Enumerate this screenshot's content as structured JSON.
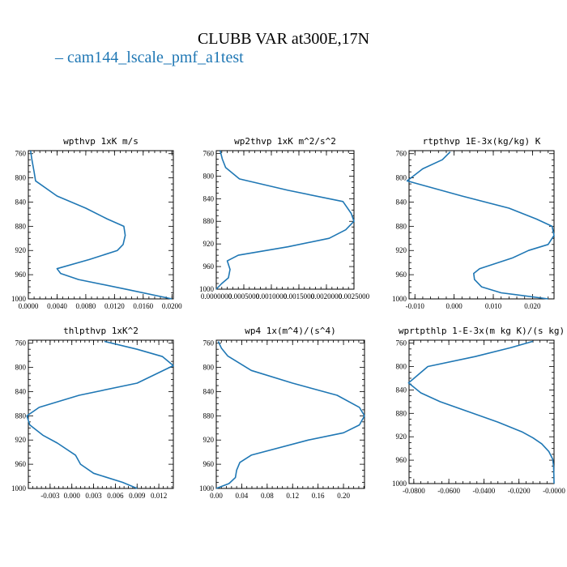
{
  "title": "CLUBB VAR at300E,17N",
  "legend": {
    "label": "cam144_lscale_pmf_a1test",
    "color": "#1f77b4"
  },
  "chart_data": [
    {
      "type": "line",
      "title": "wpthvp  1xK m/s",
      "xlim": [
        0,
        0.0202
      ],
      "ylim": [
        1000,
        755
      ],
      "y_inverted": true,
      "xticks": [
        0,
        0.004,
        0.008,
        0.012,
        0.016,
        0.02
      ],
      "xtick_labels": [
        "0.0000",
        "0.0040",
        "0.0080",
        "0.0120",
        "0.0160",
        "0.0200"
      ],
      "yticks": [
        760,
        800,
        840,
        880,
        920,
        960,
        1000
      ],
      "series": [
        {
          "x": [
            0.0003,
            0.0005,
            0.0008,
            0.001,
            0.004,
            0.008,
            0.011,
            0.0133,
            0.0135,
            0.0132,
            0.0124,
            0.0085,
            0.004,
            0.0045,
            0.007,
            0.014,
            0.02
          ],
          "y": [
            755,
            770,
            790,
            805,
            830,
            850,
            868,
            880,
            895,
            910,
            920,
            935,
            950,
            958,
            968,
            985,
            1000
          ]
        }
      ]
    },
    {
      "type": "line",
      "title": "wp2thvp  1xK m^2/s^2",
      "xlim": [
        0,
        0.0025
      ],
      "ylim": [
        1000,
        755
      ],
      "y_inverted": true,
      "xticks": [
        0,
        0.0005,
        0.001,
        0.0015,
        0.002,
        0.0025
      ],
      "xtick_labels": [
        "0.0000000",
        "0.0005000",
        "0.0010000",
        "0.0015000",
        "0.0020000",
        "0.0025000"
      ],
      "yticks": [
        760,
        800,
        840,
        880,
        920,
        960,
        1000
      ],
      "series": [
        {
          "x": [
            7e-05,
            0.00011,
            0.00017,
            0.00042,
            0.0013,
            0.0023,
            0.00245,
            0.0025,
            0.00235,
            0.00205,
            0.0013,
            0.0004,
            0.0002,
            0.00025,
            0.00022,
            0.0001,
            0.0
          ],
          "y": [
            755,
            770,
            785,
            805,
            825,
            845,
            866,
            880,
            895,
            910,
            925,
            940,
            950,
            965,
            980,
            990,
            1000
          ]
        }
      ]
    },
    {
      "type": "line",
      "title": "rtpthvp  1E-3x(kg/kg) K",
      "xlim": [
        -0.0115,
        0.0255
      ],
      "ylim": [
        1000,
        755
      ],
      "y_inverted": true,
      "xticks": [
        -0.01,
        0.0,
        0.01,
        0.02
      ],
      "xtick_labels": [
        "-0.010",
        "0.000",
        "0.010",
        "0.020"
      ],
      "yticks": [
        760,
        800,
        840,
        880,
        920,
        960,
        1000
      ],
      "series": [
        {
          "x": [
            -0.001,
            -0.003,
            -0.008,
            -0.012,
            0.002,
            0.014,
            0.021,
            0.025,
            0.0255,
            0.024,
            0.019,
            0.015,
            0.0065,
            0.005,
            0.0052,
            0.007,
            0.012,
            0.024
          ],
          "y": [
            757,
            770,
            785,
            805,
            830,
            850,
            868,
            880,
            895,
            910,
            920,
            932,
            950,
            958,
            968,
            980,
            990,
            1000
          ]
        }
      ]
    },
    {
      "type": "line",
      "title": "thlpthvp  1xK^2",
      "xlim": [
        -0.006,
        0.014
      ],
      "ylim": [
        1000,
        755
      ],
      "y_inverted": true,
      "xticks": [
        -0.003,
        0.0,
        0.003,
        0.006,
        0.009,
        0.012
      ],
      "xtick_labels": [
        "-0.003",
        "0.000",
        "0.003",
        "0.006",
        "0.009",
        "0.012"
      ],
      "yticks": [
        760,
        800,
        840,
        880,
        920,
        960,
        1000
      ],
      "series": [
        {
          "x": [
            0.0045,
            0.009,
            0.0125,
            0.014,
            0.009,
            0.001,
            -0.0045,
            -0.0062,
            -0.0058,
            -0.004,
            -0.002,
            0.0005,
            0.0012,
            0.003,
            0.007,
            0.009
          ],
          "y": [
            757,
            770,
            782,
            797,
            826,
            846,
            866,
            880,
            895,
            912,
            925,
            945,
            960,
            975,
            990,
            1000
          ]
        }
      ]
    },
    {
      "type": "line",
      "title": "wp4  1x(m^4)/(s^4)",
      "xlim": [
        0,
        0.233
      ],
      "ylim": [
        1000,
        755
      ],
      "y_inverted": true,
      "xticks": [
        0,
        0.04,
        0.08,
        0.12,
        0.16,
        0.2
      ],
      "xtick_labels": [
        "0.00",
        "0.04",
        "0.08",
        "0.12",
        "0.16",
        "0.20"
      ],
      "yticks": [
        760,
        800,
        840,
        880,
        920,
        960,
        1000
      ],
      "series": [
        {
          "x": [
            0.003,
            0.008,
            0.018,
            0.055,
            0.12,
            0.19,
            0.225,
            0.233,
            0.225,
            0.2,
            0.145,
            0.055,
            0.037,
            0.032,
            0.03,
            0.02,
            0.0
          ],
          "y": [
            757,
            768,
            781,
            805,
            826,
            846,
            866,
            880,
            895,
            908,
            920,
            945,
            957,
            970,
            982,
            992,
            1000
          ]
        }
      ]
    },
    {
      "type": "line",
      "title": "wprtpthlp  1-E-3x(m kg K)/(s kg)",
      "xlim": [
        -0.0827,
        0.0
      ],
      "ylim": [
        1000,
        755
      ],
      "y_inverted": true,
      "xticks": [
        -0.08,
        -0.06,
        -0.04,
        -0.02,
        0.0
      ],
      "xtick_labels": [
        "-0.0800",
        "-0.0600",
        "-0.0400",
        "-0.0200",
        "-0.0000"
      ],
      "yticks": [
        760,
        800,
        840,
        880,
        920,
        960,
        1000
      ],
      "series": [
        {
          "x": [
            -0.012,
            -0.025,
            -0.045,
            -0.072,
            -0.083,
            -0.076,
            -0.065,
            -0.048,
            -0.032,
            -0.018,
            -0.012,
            -0.007,
            -0.003,
            -0.0008,
            -0.0003,
            -0.0001,
            0.0
          ],
          "y": [
            757,
            768,
            783,
            800,
            828,
            845,
            860,
            878,
            895,
            912,
            922,
            932,
            945,
            958,
            970,
            985,
            1000
          ]
        }
      ]
    }
  ]
}
